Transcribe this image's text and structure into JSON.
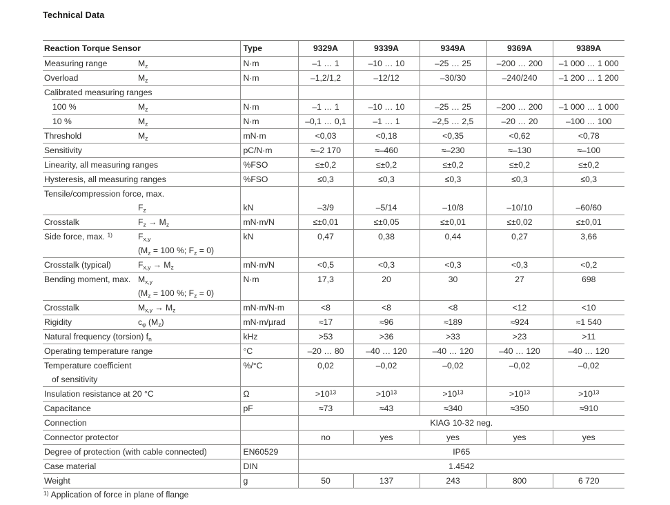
{
  "page": {
    "title": "Technical Data",
    "footnote": {
      "marker": "1)",
      "text": "Application of force in plane of flange"
    }
  },
  "colors": {
    "background": "#ffffff",
    "text": "#1d1d1b",
    "grid_line": "#8d8c8a",
    "grid_line_strong": "#757472"
  },
  "table": {
    "header": {
      "label": "Reaction Torque Sensor",
      "type": "Type",
      "models": [
        "9329A",
        "9339A",
        "9349A",
        "9369A",
        "9389A"
      ]
    },
    "rows": [
      {
        "lines": [
          {
            "name": "Measuring range",
            "symbol": "M~z~"
          }
        ],
        "type": "N·m",
        "values": [
          "–1 … 1",
          "–10 … 10",
          "–25 … 25",
          "–200 … 200",
          "–1 000 … 1 000"
        ]
      },
      {
        "lines": [
          {
            "name": "Overload",
            "symbol": "M~z~"
          }
        ],
        "type": "N·m",
        "values": [
          "–1,2/1,2",
          "–12/12",
          "–30/30",
          "–240/240",
          "–1 200 … 1 200"
        ]
      },
      {
        "lines": [
          {
            "name": "Calibrated measuring ranges"
          }
        ],
        "type": "",
        "values": [
          "",
          "",
          "",
          "",
          ""
        ]
      },
      {
        "lines": [
          {
            "name": "100 %",
            "symbol": "M~z~"
          }
        ],
        "indent": true,
        "cut_border": true,
        "type": "N·m",
        "values": [
          "–1 … 1",
          "–10 … 10",
          "–25 … 25",
          "–200 … 200",
          "–1 000 … 1 000"
        ]
      },
      {
        "lines": [
          {
            "name": "10 %",
            "symbol": "M~z~"
          }
        ],
        "indent": true,
        "cut_border": true,
        "type": "N·m",
        "values": [
          "–0,1 … 0,1",
          "–1 … 1",
          "–2,5 … 2,5",
          "–20 … 20",
          "–100 … 100"
        ]
      },
      {
        "lines": [
          {
            "name": "Threshold",
            "symbol": "M~z~"
          }
        ],
        "type": "mN·m",
        "values": [
          "<0,03",
          "<0,18",
          "<0,35",
          "<0,62",
          "<0,78"
        ]
      },
      {
        "lines": [
          {
            "name": "Sensitivity"
          }
        ],
        "type": "pC/N·m",
        "values": [
          "≈–2 170",
          "≈–460",
          "≈–230",
          "≈–130",
          "≈–100"
        ]
      },
      {
        "lines": [
          {
            "name": "Linearity, all measuring ranges"
          }
        ],
        "type": "%FSO",
        "values": [
          "≤±0,2",
          "≤±0,2",
          "≤±0,2",
          "≤±0,2",
          "≤±0,2"
        ]
      },
      {
        "lines": [
          {
            "name": "Hysteresis, all measuring ranges"
          }
        ],
        "type": "%FSO",
        "values": [
          "≤0,3",
          "≤0,3",
          "≤0,3",
          "≤0,3",
          "≤0,3"
        ]
      },
      {
        "lines": [
          {
            "name": "Tensile/compression force, max."
          },
          {
            "symbol": "F~z~"
          }
        ],
        "type": "kN",
        "values_line": 2,
        "values": [
          "–3/9",
          "–5/14",
          "–10/8",
          "–10/10",
          "–60/60"
        ]
      },
      {
        "lines": [
          {
            "name": "Crosstalk",
            "symbol": "F~z~ → M~z~"
          }
        ],
        "type": "mN·m/N",
        "values": [
          "≤±0,01",
          "≤±0,05",
          "≤±0,01",
          "≤±0,02",
          "≤±0,01"
        ]
      },
      {
        "lines": [
          {
            "name": "Side force, max. ^1)^",
            "symbol": "F~x,y~"
          },
          {
            "symbol": "(M~z~ = 100 %; F~z~ = 0)"
          }
        ],
        "type": "kN",
        "values": [
          "0,47",
          "0,38",
          "0,44",
          "0,27",
          "3,66"
        ]
      },
      {
        "lines": [
          {
            "name": "Crosstalk (typical)",
            "symbol": "F~x,y~ → M~z~"
          }
        ],
        "type": "mN·m/N",
        "values": [
          "<0,5",
          "<0,3",
          "<0,3",
          "<0,3",
          "<0,2"
        ]
      },
      {
        "lines": [
          {
            "name": "Bending moment, max.",
            "symbol": "M~x,y~"
          },
          {
            "symbol": "(M~z~ = 100 %; F~z~ = 0)"
          }
        ],
        "type": "N·m",
        "values": [
          "17,3",
          "20",
          "30",
          "27",
          "698"
        ]
      },
      {
        "lines": [
          {
            "name": "Crosstalk",
            "symbol": "M~x,y~ → M~z~"
          }
        ],
        "type": "mN·m/N·m",
        "values": [
          "<8",
          "<8",
          "<8",
          "<12",
          "<10"
        ]
      },
      {
        "lines": [
          {
            "name": "Rigidity",
            "symbol": "c~φ~ (M~z~)"
          }
        ],
        "type": "mN·m/µrad",
        "values": [
          "≈17",
          "≈96",
          "≈189",
          "≈924",
          "≈1 540"
        ]
      },
      {
        "lines": [
          {
            "name": "Natural frequency (torsion) f~n~"
          }
        ],
        "type": "kHz",
        "values": [
          ">53",
          ">36",
          ">33",
          ">23",
          ">11"
        ]
      },
      {
        "lines": [
          {
            "name": "Operating temperature range"
          }
        ],
        "type": "°C",
        "values": [
          "–20 … 80",
          "–40 … 120",
          "–40 … 120",
          "–40 … 120",
          "–40 … 120"
        ]
      },
      {
        "lines": [
          {
            "name": "Temperature coefficient"
          },
          {
            "name": "of sensitivity"
          }
        ],
        "line2_indent": true,
        "type": "%/°C",
        "values": [
          "0,02",
          "–0,02",
          "–0,02",
          "–0,02",
          "–0,02"
        ]
      },
      {
        "lines": [
          {
            "name": "Insulation resistance at 20 °C"
          }
        ],
        "type": "Ω",
        "values": [
          ">10^13^",
          ">10^13^",
          ">10^13^",
          ">10^13^",
          ">10^13^"
        ]
      },
      {
        "lines": [
          {
            "name": "Capacitance"
          }
        ],
        "type": "pF",
        "values": [
          "≈73",
          "≈43",
          "≈340",
          "≈350",
          "≈910"
        ]
      },
      {
        "lines": [
          {
            "name": "Connection"
          }
        ],
        "type": "",
        "span": "KIAG 10-32 neg."
      },
      {
        "lines": [
          {
            "name": "Connector protector"
          }
        ],
        "type": "",
        "values": [
          "no",
          "yes",
          "yes",
          "yes",
          "yes"
        ]
      },
      {
        "lines": [
          {
            "name": "Degree of protection (with cable connected)"
          }
        ],
        "type": "EN60529",
        "span": "IP65"
      },
      {
        "lines": [
          {
            "name": "Case material"
          }
        ],
        "type": "DIN",
        "span": "1.4542"
      },
      {
        "lines": [
          {
            "name": "Weight"
          }
        ],
        "type": "g",
        "values": [
          "50",
          "137",
          "243",
          "800",
          "6 720"
        ]
      }
    ]
  }
}
